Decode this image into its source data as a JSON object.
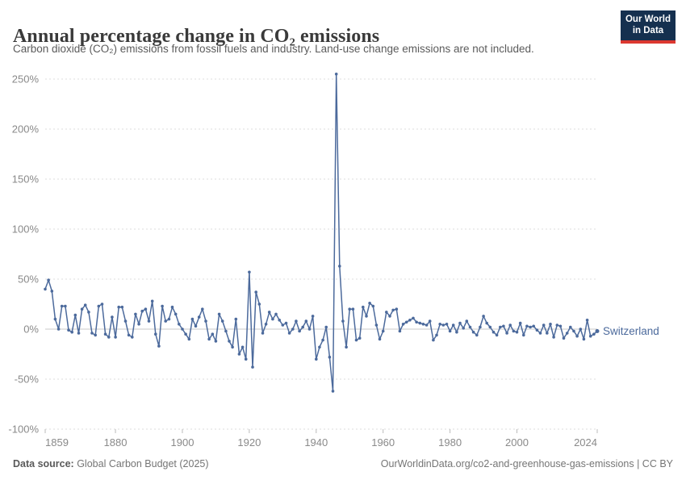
{
  "header": {
    "title": "Annual percentage change in CO₂ emissions",
    "subtitle": "Carbon dioxide (CO₂) emissions from fossil fuels and industry. Land-use change emissions are not included.",
    "logo": {
      "line1": "Our World",
      "line2": "in Data",
      "bg_color": "#15304f",
      "stripe_color": "#dc3830"
    }
  },
  "footer": {
    "source_label": "Data source:",
    "source_value": " Global Carbon Budget (2025)",
    "right_text": "OurWorldinData.org/co2-and-greenhouse-gas-emissions | CC BY"
  },
  "chart_data": {
    "type": "line",
    "title": "Annual percentage change in CO₂ emissions",
    "entity_label": "Switzerland",
    "line_color": "#4c6a9c",
    "grid": true,
    "legend_position": "end-of-line",
    "xlabel": "",
    "ylabel": "",
    "ylim": [
      -100,
      250
    ],
    "xlim": [
      1859,
      2024
    ],
    "yticks": [
      250,
      200,
      150,
      100,
      50,
      0,
      -50,
      -100
    ],
    "ytick_suffix": "%",
    "xticks": [
      1859,
      1880,
      1900,
      1920,
      1940,
      1960,
      1980,
      2000,
      2024
    ],
    "axis_text_color": "#8a8a8a",
    "gridline_color": "#dedede",
    "zeroline_color": "#c8c8c8",
    "points": [
      [
        1859,
        40
      ],
      [
        1860,
        49
      ],
      [
        1861,
        38
      ],
      [
        1862,
        10
      ],
      [
        1863,
        0
      ],
      [
        1864,
        23
      ],
      [
        1865,
        23
      ],
      [
        1866,
        -1
      ],
      [
        1867,
        -3
      ],
      [
        1868,
        14
      ],
      [
        1869,
        -4
      ],
      [
        1870,
        20
      ],
      [
        1871,
        24
      ],
      [
        1872,
        17
      ],
      [
        1873,
        -4
      ],
      [
        1874,
        -6
      ],
      [
        1875,
        23
      ],
      [
        1876,
        25
      ],
      [
        1877,
        -5
      ],
      [
        1878,
        -8
      ],
      [
        1879,
        12
      ],
      [
        1880,
        -8
      ],
      [
        1881,
        22
      ],
      [
        1882,
        22
      ],
      [
        1883,
        8
      ],
      [
        1884,
        -6
      ],
      [
        1885,
        -8
      ],
      [
        1886,
        15
      ],
      [
        1887,
        5
      ],
      [
        1888,
        18
      ],
      [
        1889,
        20
      ],
      [
        1890,
        8
      ],
      [
        1891,
        28
      ],
      [
        1892,
        -5
      ],
      [
        1893,
        -17
      ],
      [
        1894,
        23
      ],
      [
        1895,
        8
      ],
      [
        1896,
        10
      ],
      [
        1897,
        22
      ],
      [
        1898,
        15
      ],
      [
        1899,
        5
      ],
      [
        1900,
        0
      ],
      [
        1901,
        -5
      ],
      [
        1902,
        -10
      ],
      [
        1903,
        10
      ],
      [
        1904,
        3
      ],
      [
        1905,
        12
      ],
      [
        1906,
        20
      ],
      [
        1907,
        8
      ],
      [
        1908,
        -10
      ],
      [
        1909,
        -5
      ],
      [
        1910,
        -12
      ],
      [
        1911,
        15
      ],
      [
        1912,
        8
      ],
      [
        1913,
        -2
      ],
      [
        1914,
        -12
      ],
      [
        1915,
        -18
      ],
      [
        1916,
        10
      ],
      [
        1917,
        -25
      ],
      [
        1918,
        -18
      ],
      [
        1919,
        -30
      ],
      [
        1920,
        57
      ],
      [
        1921,
        -38
      ],
      [
        1922,
        37
      ],
      [
        1923,
        25
      ],
      [
        1924,
        -4
      ],
      [
        1925,
        5
      ],
      [
        1926,
        17
      ],
      [
        1927,
        10
      ],
      [
        1928,
        15
      ],
      [
        1929,
        9
      ],
      [
        1930,
        4
      ],
      [
        1931,
        6
      ],
      [
        1932,
        -4
      ],
      [
        1933,
        0
      ],
      [
        1934,
        8
      ],
      [
        1935,
        -2
      ],
      [
        1936,
        2
      ],
      [
        1937,
        8
      ],
      [
        1938,
        0
      ],
      [
        1939,
        13
      ],
      [
        1940,
        -30
      ],
      [
        1941,
        -18
      ],
      [
        1942,
        -11
      ],
      [
        1943,
        2
      ],
      [
        1944,
        -28
      ],
      [
        1945,
        -62
      ],
      [
        1946,
        255
      ],
      [
        1947,
        63
      ],
      [
        1948,
        8
      ],
      [
        1949,
        -18
      ],
      [
        1950,
        20
      ],
      [
        1951,
        20
      ],
      [
        1952,
        -11
      ],
      [
        1953,
        -9
      ],
      [
        1954,
        22
      ],
      [
        1955,
        13
      ],
      [
        1956,
        26
      ],
      [
        1957,
        23
      ],
      [
        1958,
        4
      ],
      [
        1959,
        -10
      ],
      [
        1960,
        -2
      ],
      [
        1961,
        17
      ],
      [
        1962,
        13
      ],
      [
        1963,
        19
      ],
      [
        1964,
        20
      ],
      [
        1965,
        -2
      ],
      [
        1966,
        5
      ],
      [
        1967,
        7
      ],
      [
        1968,
        9
      ],
      [
        1969,
        11
      ],
      [
        1970,
        7
      ],
      [
        1971,
        6
      ],
      [
        1972,
        5
      ],
      [
        1973,
        4
      ],
      [
        1974,
        8
      ],
      [
        1975,
        -11
      ],
      [
        1976,
        -6
      ],
      [
        1977,
        5
      ],
      [
        1978,
        4
      ],
      [
        1979,
        5
      ],
      [
        1980,
        -2
      ],
      [
        1981,
        4
      ],
      [
        1982,
        -3
      ],
      [
        1983,
        6
      ],
      [
        1984,
        1
      ],
      [
        1985,
        8
      ],
      [
        1986,
        2
      ],
      [
        1987,
        -3
      ],
      [
        1988,
        -6
      ],
      [
        1989,
        2
      ],
      [
        1990,
        13
      ],
      [
        1991,
        6
      ],
      [
        1992,
        2
      ],
      [
        1993,
        -3
      ],
      [
        1994,
        -6
      ],
      [
        1995,
        2
      ],
      [
        1996,
        3
      ],
      [
        1997,
        -4
      ],
      [
        1998,
        4
      ],
      [
        1999,
        -2
      ],
      [
        2000,
        -3
      ],
      [
        2001,
        6
      ],
      [
        2002,
        -6
      ],
      [
        2003,
        3
      ],
      [
        2004,
        2
      ],
      [
        2005,
        3
      ],
      [
        2006,
        -1
      ],
      [
        2007,
        -4
      ],
      [
        2008,
        4
      ],
      [
        2009,
        -4
      ],
      [
        2010,
        5
      ],
      [
        2011,
        -8
      ],
      [
        2012,
        4
      ],
      [
        2013,
        3
      ],
      [
        2014,
        -9
      ],
      [
        2015,
        -4
      ],
      [
        2016,
        2
      ],
      [
        2017,
        -2
      ],
      [
        2018,
        -7
      ],
      [
        2019,
        0
      ],
      [
        2020,
        -10
      ],
      [
        2021,
        9
      ],
      [
        2022,
        -7
      ],
      [
        2023,
        -5
      ],
      [
        2024,
        -2
      ]
    ]
  }
}
